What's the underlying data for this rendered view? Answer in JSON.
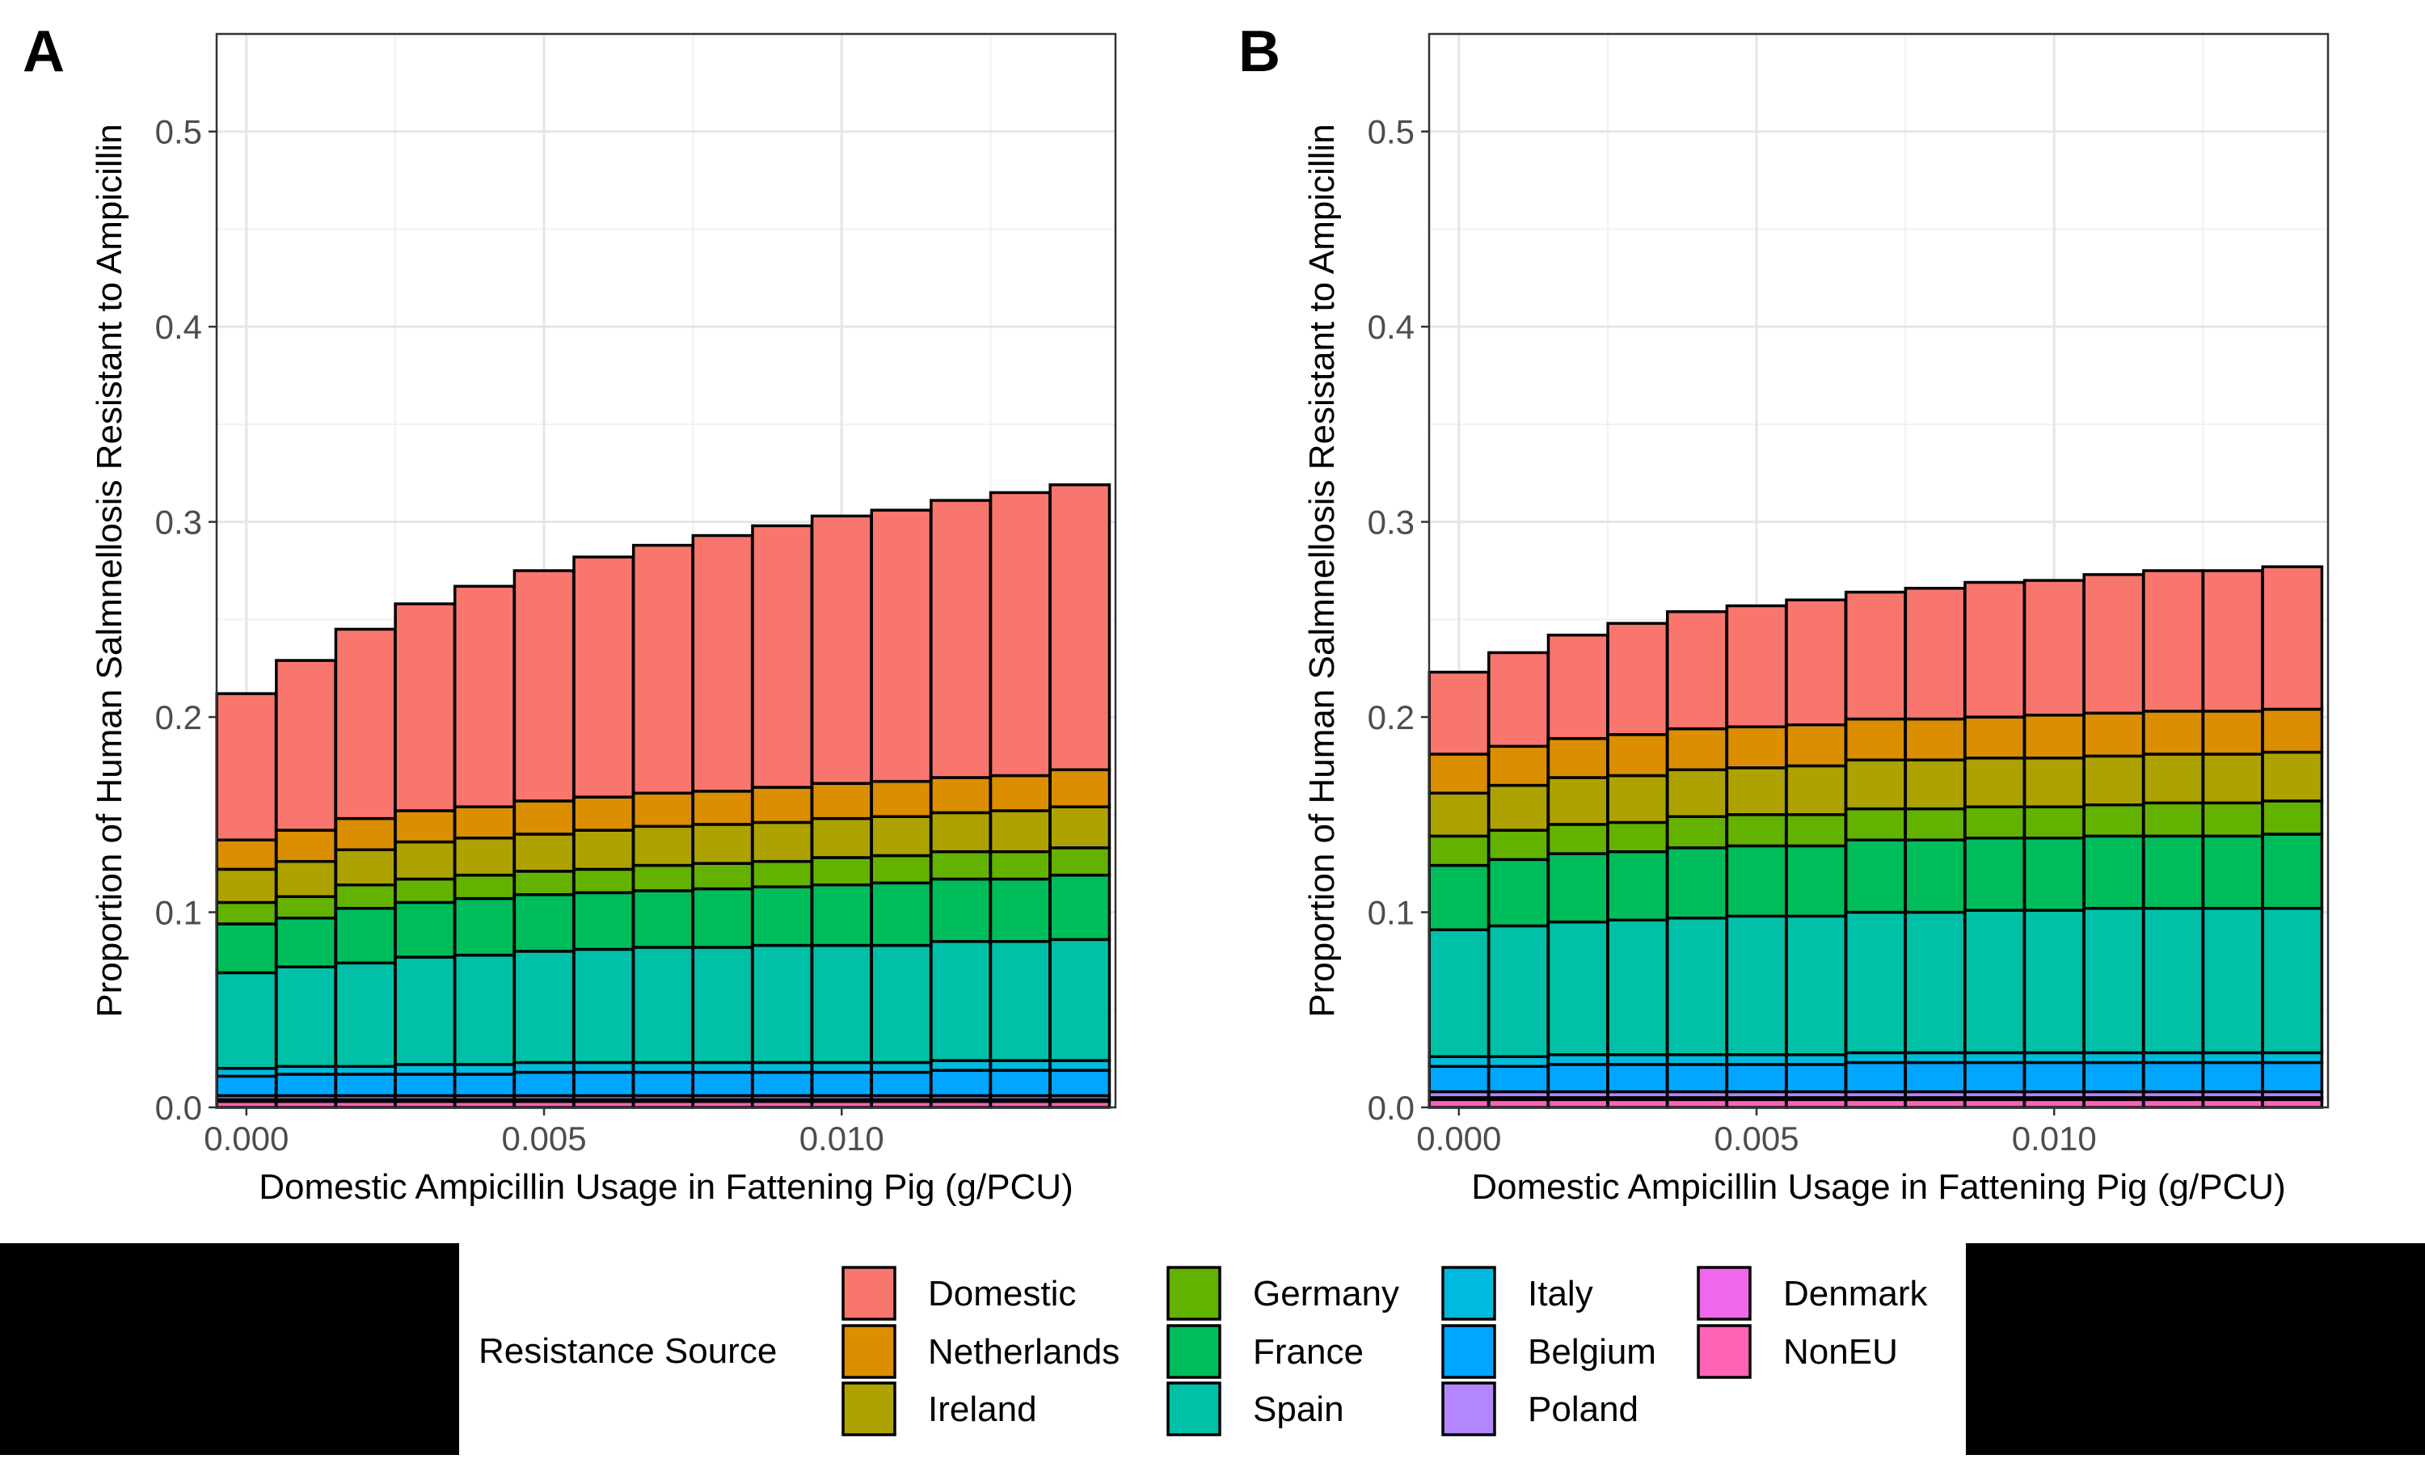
{
  "resistance_colors": {
    "Domestic": "#F8766D",
    "Netherlands": "#DB8E00",
    "Ireland": "#AEA200",
    "Germany": "#64B200",
    "France": "#00BD5C",
    "Spain": "#00C1A7",
    "Italy": "#00BADE",
    "Belgium": "#00A6FF",
    "Poland": "#B385FF",
    "Denmark": "#EF67EB",
    "NonEU": "#FF63B6"
  },
  "legend": {
    "title": "Resistance Source",
    "items": [
      "Domestic",
      "Netherlands",
      "Ireland",
      "Germany",
      "France",
      "Spain",
      "Italy",
      "Belgium",
      "Poland",
      "Denmark",
      "NonEU"
    ]
  },
  "chart_data": [
    {
      "panel": "A",
      "type": "bar",
      "stacked": true,
      "xlabel": "Domestic Ampicillin Usage in Fattening Pig (g/PCU)",
      "ylabel": "Proportion of Human Salmnellosis Resistant to Ampicillin",
      "xlim": [
        -0.0005,
        0.0146
      ],
      "ylim": [
        0,
        0.55
      ],
      "xticks": [
        0.0,
        0.005,
        0.01
      ],
      "xtick_labels": [
        "0.000",
        "0.005",
        "0.010"
      ],
      "yticks": [
        0.0,
        0.1,
        0.2,
        0.3,
        0.4,
        0.5
      ],
      "ytick_labels": [
        "0.0",
        "0.1",
        "0.2",
        "0.3",
        "0.4",
        "0.5"
      ],
      "grid": true,
      "x": [
        0.0,
        0.001,
        0.002,
        0.003,
        0.004,
        0.005,
        0.006,
        0.007,
        0.008,
        0.009,
        0.01,
        0.011,
        0.012,
        0.013,
        0.014
      ],
      "series": [
        {
          "name": "NonEU",
          "values": [
            0.003,
            0.003,
            0.003,
            0.003,
            0.003,
            0.003,
            0.003,
            0.003,
            0.003,
            0.003,
            0.003,
            0.003,
            0.003,
            0.003,
            0.003
          ]
        },
        {
          "name": "Denmark",
          "values": [
            0.001,
            0.001,
            0.001,
            0.001,
            0.001,
            0.001,
            0.001,
            0.001,
            0.001,
            0.001,
            0.001,
            0.001,
            0.001,
            0.001,
            0.001
          ]
        },
        {
          "name": "Poland",
          "values": [
            0.002,
            0.002,
            0.002,
            0.002,
            0.002,
            0.002,
            0.002,
            0.002,
            0.002,
            0.002,
            0.002,
            0.002,
            0.002,
            0.002,
            0.002
          ]
        },
        {
          "name": "Belgium",
          "values": [
            0.01,
            0.011,
            0.011,
            0.011,
            0.011,
            0.012,
            0.012,
            0.012,
            0.012,
            0.012,
            0.012,
            0.012,
            0.013,
            0.013,
            0.013
          ]
        },
        {
          "name": "Italy",
          "values": [
            0.004,
            0.004,
            0.004,
            0.005,
            0.005,
            0.005,
            0.005,
            0.005,
            0.005,
            0.005,
            0.005,
            0.005,
            0.005,
            0.005,
            0.005
          ]
        },
        {
          "name": "Spain",
          "values": [
            0.049,
            0.051,
            0.053,
            0.055,
            0.056,
            0.057,
            0.058,
            0.059,
            0.059,
            0.06,
            0.06,
            0.06,
            0.061,
            0.061,
            0.062
          ]
        },
        {
          "name": "France",
          "values": [
            0.025,
            0.025,
            0.028,
            0.028,
            0.029,
            0.029,
            0.029,
            0.029,
            0.03,
            0.03,
            0.031,
            0.032,
            0.032,
            0.032,
            0.033
          ]
        },
        {
          "name": "Germany",
          "values": [
            0.011,
            0.011,
            0.012,
            0.012,
            0.012,
            0.012,
            0.012,
            0.013,
            0.013,
            0.013,
            0.014,
            0.014,
            0.014,
            0.014,
            0.014
          ]
        },
        {
          "name": "Ireland",
          "values": [
            0.017,
            0.018,
            0.018,
            0.019,
            0.019,
            0.019,
            0.02,
            0.02,
            0.02,
            0.02,
            0.02,
            0.02,
            0.02,
            0.021,
            0.021
          ]
        },
        {
          "name": "Netherlands",
          "values": [
            0.015,
            0.016,
            0.016,
            0.016,
            0.016,
            0.017,
            0.017,
            0.017,
            0.017,
            0.018,
            0.018,
            0.018,
            0.018,
            0.018,
            0.019
          ]
        },
        {
          "name": "Domestic",
          "values": [
            0.075,
            0.087,
            0.097,
            0.106,
            0.113,
            0.118,
            0.123,
            0.127,
            0.131,
            0.134,
            0.137,
            0.139,
            0.142,
            0.145,
            0.146
          ]
        }
      ]
    },
    {
      "panel": "B",
      "type": "bar",
      "stacked": true,
      "xlabel": "Domestic Ampicillin Usage in Fattening Pig (g/PCU)",
      "ylabel": "Proportion of Human Salmnellosis Resistant to Ampicillin",
      "xlim": [
        -0.0005,
        0.0146
      ],
      "ylim": [
        0,
        0.55
      ],
      "xticks": [
        0.0,
        0.005,
        0.01
      ],
      "xtick_labels": [
        "0.000",
        "0.005",
        "0.010"
      ],
      "yticks": [
        0.0,
        0.1,
        0.2,
        0.3,
        0.4,
        0.5
      ],
      "ytick_labels": [
        "0.0",
        "0.1",
        "0.2",
        "0.3",
        "0.4",
        "0.5"
      ],
      "grid": true,
      "x": [
        0.0,
        0.001,
        0.002,
        0.003,
        0.004,
        0.005,
        0.006,
        0.007,
        0.008,
        0.009,
        0.01,
        0.011,
        0.012,
        0.013,
        0.014
      ],
      "series": [
        {
          "name": "NonEU",
          "values": [
            0.004,
            0.004,
            0.004,
            0.004,
            0.004,
            0.004,
            0.004,
            0.004,
            0.004,
            0.004,
            0.004,
            0.004,
            0.004,
            0.004,
            0.004
          ]
        },
        {
          "name": "Denmark",
          "values": [
            0.001,
            0.001,
            0.001,
            0.001,
            0.001,
            0.001,
            0.001,
            0.001,
            0.001,
            0.001,
            0.001,
            0.001,
            0.001,
            0.001,
            0.001
          ]
        },
        {
          "name": "Poland",
          "values": [
            0.003,
            0.003,
            0.003,
            0.003,
            0.003,
            0.003,
            0.003,
            0.003,
            0.003,
            0.003,
            0.003,
            0.003,
            0.003,
            0.003,
            0.003
          ]
        },
        {
          "name": "Belgium",
          "values": [
            0.013,
            0.013,
            0.014,
            0.014,
            0.014,
            0.014,
            0.014,
            0.015,
            0.015,
            0.015,
            0.015,
            0.015,
            0.015,
            0.015,
            0.015
          ]
        },
        {
          "name": "Italy",
          "values": [
            0.005,
            0.005,
            0.005,
            0.005,
            0.005,
            0.005,
            0.005,
            0.005,
            0.005,
            0.005,
            0.005,
            0.005,
            0.005,
            0.005,
            0.005
          ]
        },
        {
          "name": "Spain",
          "values": [
            0.065,
            0.067,
            0.068,
            0.069,
            0.07,
            0.071,
            0.071,
            0.072,
            0.072,
            0.073,
            0.073,
            0.074,
            0.074,
            0.074,
            0.074
          ]
        },
        {
          "name": "France",
          "values": [
            0.033,
            0.034,
            0.035,
            0.035,
            0.036,
            0.036,
            0.036,
            0.037,
            0.037,
            0.037,
            0.037,
            0.037,
            0.037,
            0.037,
            0.038
          ]
        },
        {
          "name": "Germany",
          "values": [
            0.015,
            0.015,
            0.015,
            0.015,
            0.016,
            0.016,
            0.016,
            0.016,
            0.016,
            0.016,
            0.016,
            0.016,
            0.017,
            0.017,
            0.017
          ]
        },
        {
          "name": "Ireland",
          "values": [
            0.022,
            0.023,
            0.024,
            0.024,
            0.024,
            0.024,
            0.025,
            0.025,
            0.025,
            0.025,
            0.025,
            0.025,
            0.025,
            0.025,
            0.025
          ]
        },
        {
          "name": "Netherlands",
          "values": [
            0.02,
            0.02,
            0.02,
            0.021,
            0.021,
            0.021,
            0.021,
            0.021,
            0.021,
            0.021,
            0.022,
            0.022,
            0.022,
            0.022,
            0.022
          ]
        },
        {
          "name": "Domestic",
          "values": [
            0.042,
            0.048,
            0.053,
            0.057,
            0.06,
            0.062,
            0.064,
            0.065,
            0.067,
            0.069,
            0.069,
            0.071,
            0.072,
            0.072,
            0.073
          ]
        }
      ]
    }
  ]
}
